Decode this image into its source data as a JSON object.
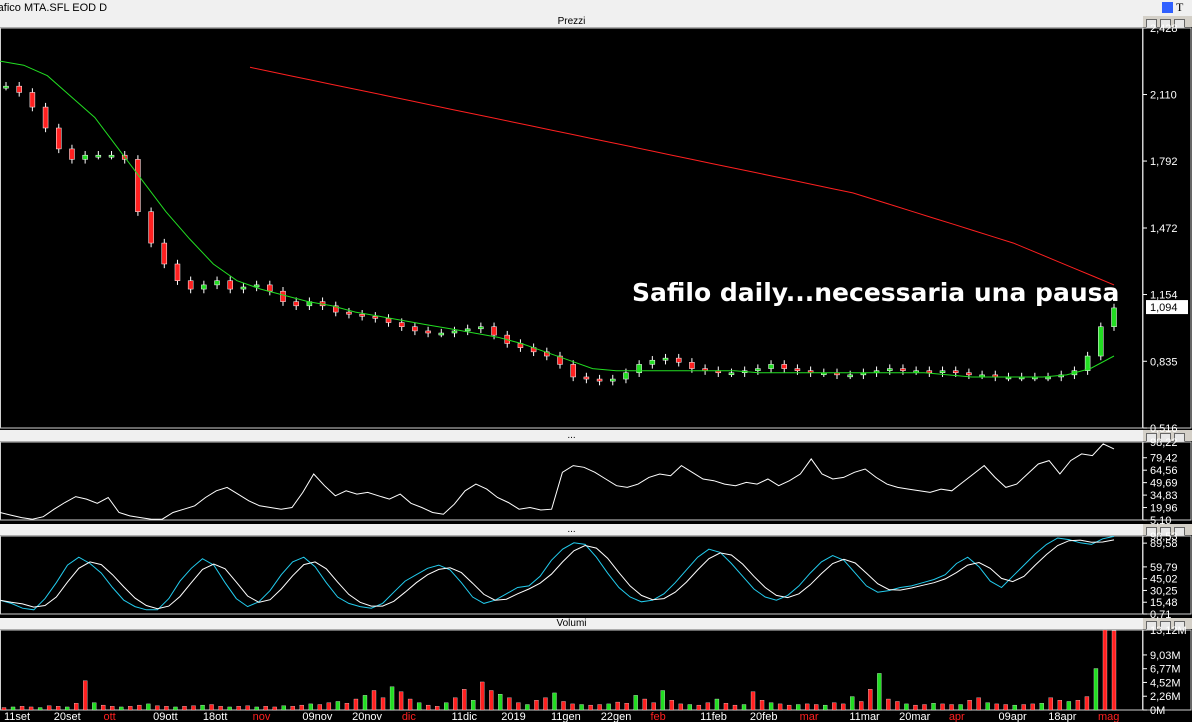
{
  "window": {
    "title": "rafico MTA.SFL EOD D"
  },
  "panels": {
    "price": "Prezzi",
    "osc1": "...",
    "osc2": "...",
    "volume": "Volumi"
  },
  "annotation": "Safilo daily...necessaria una pausa",
  "price_axis": [
    "2,428",
    "2,110",
    "1,792",
    "1,472",
    "1,154",
    "0,835",
    "0,516"
  ],
  "price_last": "1,094",
  "osc1_axis": [
    "98,22",
    "79,42",
    "64,56",
    "49,69",
    "34,83",
    "19,96",
    "5,10"
  ],
  "osc2_axis": [
    "98,53",
    "89,58",
    "59,79",
    "45,02",
    "30,25",
    "15,48",
    "0,71"
  ],
  "volume_axis": [
    "13,12M",
    "9,03M",
    "6,77M",
    "4,52M",
    "2,26M",
    "0M"
  ],
  "x_labels": [
    {
      "t": "11set",
      "c": "#ffffff"
    },
    {
      "t": "20set",
      "c": "#ffffff"
    },
    {
      "t": "ott",
      "c": "#ff2020"
    },
    {
      "t": "09ott",
      "c": "#ffffff"
    },
    {
      "t": "18ott",
      "c": "#ffffff"
    },
    {
      "t": "nov",
      "c": "#ff2020"
    },
    {
      "t": "09nov",
      "c": "#ffffff"
    },
    {
      "t": "20nov",
      "c": "#ffffff"
    },
    {
      "t": "dic",
      "c": "#ff2020"
    },
    {
      "t": "11dic",
      "c": "#ffffff"
    },
    {
      "t": "2019",
      "c": "#ffffff"
    },
    {
      "t": "11gen",
      "c": "#ffffff"
    },
    {
      "t": "22gen",
      "c": "#ffffff"
    },
    {
      "t": "feb",
      "c": "#ff2020"
    },
    {
      "t": "11feb",
      "c": "#ffffff"
    },
    {
      "t": "20feb",
      "c": "#ffffff"
    },
    {
      "t": "mar",
      "c": "#ff2020"
    },
    {
      "t": "11mar",
      "c": "#ffffff"
    },
    {
      "t": "20mar",
      "c": "#ffffff"
    },
    {
      "t": "apr",
      "c": "#ff2020"
    },
    {
      "t": "09apr",
      "c": "#ffffff"
    },
    {
      "t": "18apr",
      "c": "#ffffff"
    },
    {
      "t": "mag",
      "c": "#ff2020"
    }
  ],
  "chart_data": {
    "type": "line",
    "title": "Prezzi",
    "ylim": [
      0.516,
      2.428
    ],
    "series": [
      {
        "values": [
          2.15,
          2.12,
          2.05,
          1.95,
          1.85,
          1.8,
          1.82,
          1.82,
          1.82,
          1.8,
          1.55,
          1.4,
          1.3,
          1.22,
          1.18,
          1.2,
          1.22,
          1.18,
          1.19,
          1.2,
          1.17,
          1.12,
          1.1,
          1.12,
          1.1,
          1.07,
          1.06,
          1.05,
          1.04,
          1.02,
          1.0,
          0.98,
          0.97,
          0.97,
          0.98,
          0.99,
          1.0,
          0.96,
          0.92,
          0.9,
          0.88,
          0.86,
          0.82,
          0.76,
          0.75,
          0.74,
          0.75,
          0.78,
          0.82,
          0.84,
          0.85,
          0.83,
          0.8,
          0.79,
          0.78,
          0.78,
          0.79,
          0.8,
          0.82,
          0.8,
          0.79,
          0.78,
          0.78,
          0.77,
          0.77,
          0.78,
          0.79,
          0.8,
          0.79,
          0.79,
          0.78,
          0.79,
          0.78,
          0.77,
          0.77,
          0.76,
          0.76,
          0.76,
          0.76,
          0.76,
          0.77,
          0.79,
          0.86,
          1.0,
          1.09
        ]
      },
      {
        "values": [
          2.24,
          2.22,
          2.2,
          2.18,
          2.16,
          2.14,
          2.12,
          2.1,
          2.08,
          2.06,
          2.04,
          2.02,
          2.0,
          1.98,
          1.96,
          1.94,
          1.92,
          1.9,
          1.88,
          1.86,
          1.84,
          1.82,
          1.8,
          1.78,
          1.76,
          1.74,
          1.72,
          1.7,
          1.68,
          1.66,
          1.64,
          1.61,
          1.58,
          1.55,
          1.52,
          1.49,
          1.46,
          1.43,
          1.4,
          1.36,
          1.32,
          1.28,
          1.24,
          1.2
        ]
      },
      {
        "values": [
          2.27,
          2.25,
          2.2,
          2.1,
          2.0,
          1.85,
          1.7,
          1.55,
          1.42,
          1.3,
          1.22,
          1.18,
          1.15,
          1.12,
          1.1,
          1.07,
          1.05,
          1.03,
          1.01,
          0.99,
          0.97,
          0.95,
          0.92,
          0.88,
          0.84,
          0.8,
          0.79,
          0.79,
          0.79,
          0.79,
          0.79,
          0.79,
          0.78,
          0.78,
          0.78,
          0.78,
          0.78,
          0.78,
          0.78,
          0.78,
          0.77,
          0.76,
          0.76,
          0.76,
          0.76,
          0.77,
          0.8,
          0.86
        ]
      }
    ],
    "osc1": {
      "values": [
        14,
        11,
        8,
        6,
        9,
        18,
        26,
        33,
        30,
        25,
        32,
        14,
        10,
        8,
        6,
        6,
        14,
        18,
        22,
        32,
        40,
        44,
        36,
        28,
        22,
        20,
        18,
        20,
        38,
        60,
        46,
        34,
        40,
        36,
        38,
        34,
        30,
        36,
        25,
        20,
        14,
        12,
        24,
        40,
        48,
        42,
        32,
        26,
        18,
        20,
        17,
        18,
        62,
        70,
        68,
        62,
        54,
        46,
        44,
        48,
        56,
        60,
        58,
        70,
        62,
        54,
        52,
        48,
        46,
        50,
        48,
        54,
        46,
        52,
        60,
        78,
        60,
        54,
        56,
        62,
        66,
        56,
        48,
        44,
        42,
        40,
        38,
        42,
        40,
        50,
        60,
        70,
        56,
        44,
        48,
        60,
        72,
        76,
        60,
        76,
        84,
        82,
        96,
        90
      ]
    },
    "osc2": {
      "values": [
        18,
        14,
        8,
        6,
        20,
        40,
        62,
        72,
        64,
        52,
        34,
        18,
        10,
        6,
        6,
        20,
        42,
        58,
        70,
        62,
        40,
        20,
        10,
        16,
        30,
        50,
        66,
        72,
        60,
        40,
        22,
        14,
        10,
        8,
        14,
        28,
        42,
        50,
        58,
        62,
        56,
        40,
        22,
        14,
        18,
        26,
        34,
        36,
        48,
        68,
        82,
        90,
        88,
        72,
        52,
        34,
        22,
        16,
        18,
        26,
        40,
        56,
        72,
        82,
        78,
        64,
        48,
        32,
        22,
        18,
        24,
        36,
        52,
        66,
        74,
        68,
        52,
        36,
        28,
        30,
        34,
        36,
        40,
        44,
        50,
        64,
        72,
        60,
        42,
        34,
        48,
        62,
        76,
        88,
        96,
        94,
        90,
        88,
        95,
        98
      ]
    },
    "volume": {
      "values": [
        0.4,
        0.5,
        0.6,
        0.5,
        0.4,
        0.7,
        0.6,
        0.5,
        1.1,
        4.8,
        1.2,
        0.8,
        0.6,
        0.5,
        0.6,
        0.8,
        1.0,
        0.7,
        0.6,
        0.5,
        0.6,
        0.7,
        0.8,
        0.9,
        0.6,
        0.5,
        0.6,
        0.7,
        0.5,
        0.6,
        0.5,
        0.7,
        0.6,
        0.8,
        1.0,
        0.9,
        1.2,
        1.4,
        1.1,
        1.8,
        2.4,
        3.2,
        2.0,
        3.8,
        3.0,
        1.8,
        1.2,
        0.8,
        0.6,
        1.2,
        2.0,
        3.4,
        1.6,
        4.6,
        3.2,
        2.6,
        2.0,
        1.2,
        0.9,
        1.6,
        2.0,
        2.8,
        1.4,
        1.0,
        0.9,
        0.8,
        0.9,
        1.0,
        1.3,
        1.1,
        2.4,
        1.8,
        1.2,
        3.2,
        1.6,
        1.0,
        0.9,
        0.8,
        1.2,
        1.8,
        1.1,
        0.8,
        0.9,
        3.0,
        1.6,
        1.2,
        1.0,
        0.8,
        0.9,
        1.0,
        0.9,
        0.8,
        1.2,
        1.0,
        2.2,
        1.4,
        3.4,
        6.0,
        1.8,
        1.4,
        1.0,
        0.8,
        0.9,
        1.1,
        1.0,
        0.9,
        0.9,
        1.6,
        2.0,
        1.2,
        1.0,
        0.9,
        0.8,
        0.9,
        1.0,
        1.1,
        2.0,
        1.6,
        1.4,
        1.6,
        2.2,
        6.8,
        13.12,
        13.0
      ]
    },
    "volume_ylim": [
      0,
      13.12
    ]
  }
}
